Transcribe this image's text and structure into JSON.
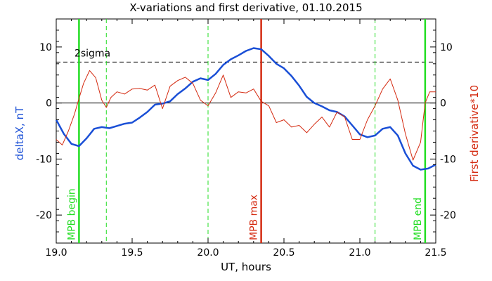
{
  "chart_data": {
    "type": "line",
    "title": "X-variations and first derivative, 01.10.2015",
    "xlabel": "UT, hours",
    "ylabel_left": "deltaX, nT",
    "ylabel_right": "First derivative*10",
    "xlim": [
      19.0,
      21.5
    ],
    "ylim": [
      -25,
      15
    ],
    "x_ticks": [
      19.0,
      19.5,
      20.0,
      20.5,
      21.0,
      21.5
    ],
    "x_tick_labels": [
      "19.0",
      "19.5",
      "20.0",
      "20.5",
      "21.0",
      "21.5"
    ],
    "y_ticks": [
      -20,
      -10,
      0,
      10
    ],
    "y_tick_labels": [
      "-20",
      "-10",
      "0",
      "10"
    ],
    "grid": false,
    "colors": {
      "deltaX": "#1a4fd6",
      "derivative": "#d42a10",
      "mpb": "#22dd22",
      "mpb_max": "#d42a10",
      "sigma": "#000000"
    },
    "series": [
      {
        "key": "deltaX",
        "axis": "left",
        "color": "#1a4fd6",
        "x": [
          19.0,
          19.05,
          19.1,
          19.15,
          19.2,
          19.25,
          19.3,
          19.35,
          19.4,
          19.45,
          19.5,
          19.55,
          19.6,
          19.65,
          19.7,
          19.75,
          19.8,
          19.85,
          19.9,
          19.95,
          20.0,
          20.05,
          20.1,
          20.15,
          20.2,
          20.25,
          20.3,
          20.35,
          20.4,
          20.45,
          20.5,
          20.55,
          20.6,
          20.65,
          20.7,
          20.75,
          20.8,
          20.85,
          20.9,
          20.95,
          21.0,
          21.05,
          21.1,
          21.15,
          21.2,
          21.25,
          21.3,
          21.35,
          21.4,
          21.45,
          21.5
        ],
        "y": [
          -3.0,
          -5.5,
          -7.3,
          -7.7,
          -6.3,
          -4.6,
          -4.3,
          -4.5,
          -4.1,
          -3.7,
          -3.5,
          -2.6,
          -1.6,
          -0.3,
          -0.1,
          0.3,
          1.6,
          2.6,
          3.8,
          4.4,
          4.1,
          5.2,
          6.8,
          7.8,
          8.5,
          9.3,
          9.8,
          9.6,
          8.4,
          7.0,
          6.2,
          4.8,
          3.1,
          1.1,
          0.0,
          -0.6,
          -1.3,
          -1.6,
          -2.4,
          -4.0,
          -5.6,
          -6.1,
          -5.8,
          -4.6,
          -4.3,
          -5.8,
          -9.0,
          -11.2,
          -11.9,
          -11.7,
          -11.0
        ]
      },
      {
        "key": "derivative",
        "axis": "right",
        "color": "#d42a10",
        "x": [
          19.0,
          19.04,
          19.08,
          19.12,
          19.15,
          19.18,
          19.22,
          19.26,
          19.3,
          19.33,
          19.36,
          19.4,
          19.45,
          19.5,
          19.55,
          19.6,
          19.65,
          19.7,
          19.75,
          19.8,
          19.85,
          19.9,
          19.95,
          20.0,
          20.05,
          20.1,
          20.15,
          20.2,
          20.25,
          20.3,
          20.35,
          20.4,
          20.45,
          20.5,
          20.55,
          20.6,
          20.65,
          20.7,
          20.75,
          20.8,
          20.85,
          20.9,
          20.95,
          21.0,
          21.05,
          21.1,
          21.15,
          21.2,
          21.25,
          21.3,
          21.35,
          21.4,
          21.43,
          21.46,
          21.5
        ],
        "y": [
          -6.5,
          -7.5,
          -5.0,
          -2.0,
          0.8,
          3.5,
          5.8,
          4.5,
          0.5,
          -0.8,
          1.0,
          2.0,
          1.6,
          2.5,
          2.6,
          2.3,
          3.2,
          -1.0,
          3.0,
          4.0,
          4.6,
          3.5,
          0.5,
          -0.5,
          1.8,
          5.0,
          1.0,
          2.0,
          1.8,
          2.5,
          0.3,
          -0.5,
          -3.5,
          -3.0,
          -4.3,
          -4.0,
          -5.3,
          -3.8,
          -2.5,
          -4.3,
          -1.6,
          -2.5,
          -6.5,
          -6.5,
          -3.0,
          -0.5,
          2.5,
          4.3,
          0.5,
          -5.5,
          -10.2,
          -7.0,
          0.0,
          2.0,
          2.0
        ]
      }
    ],
    "reference_lines": {
      "sigma_level": 7.3,
      "sigma_label": "2sigma",
      "zero_level": 0,
      "mpb_begin_x": 19.15,
      "mpb_end_x": 21.43,
      "mpb_max_x": 20.35,
      "dashed_green_x": [
        19.33,
        20.0,
        21.1
      ]
    },
    "annotations": {
      "mpb_begin": "MPB begin",
      "mpb_max": "MPB max",
      "mpb_end": "MPB end"
    }
  }
}
